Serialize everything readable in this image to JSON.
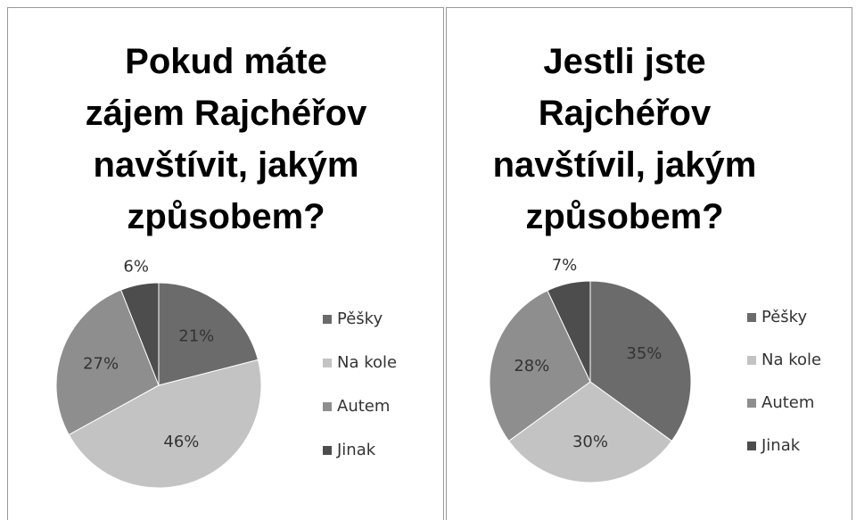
{
  "chart_data": [
    {
      "type": "pie",
      "title": "Pokud máte zájem Rajchéřov navštívit, jakým způsobem?",
      "categories": [
        "Pěšky",
        "Na kole",
        "Autem",
        "Jinak"
      ],
      "values": [
        21,
        46,
        27,
        6
      ],
      "value_labels": [
        "21%",
        "46%",
        "27%",
        "6%"
      ],
      "colors": [
        "#6b6b6b",
        "#c3c3c3",
        "#8e8e8e",
        "#4d4d4d"
      ],
      "legend": "right"
    },
    {
      "type": "pie",
      "title": "Jestli jste Rajchéřov navštívil, jakým způsobem?",
      "categories": [
        "Pěšky",
        "Na kole",
        "Autem",
        "Jinak"
      ],
      "values": [
        35,
        30,
        28,
        7
      ],
      "value_labels": [
        "35%",
        "30%",
        "28%",
        "7%"
      ],
      "colors": [
        "#6b6b6b",
        "#c3c3c3",
        "#8e8e8e",
        "#4d4d4d"
      ],
      "legend": "right"
    }
  ]
}
